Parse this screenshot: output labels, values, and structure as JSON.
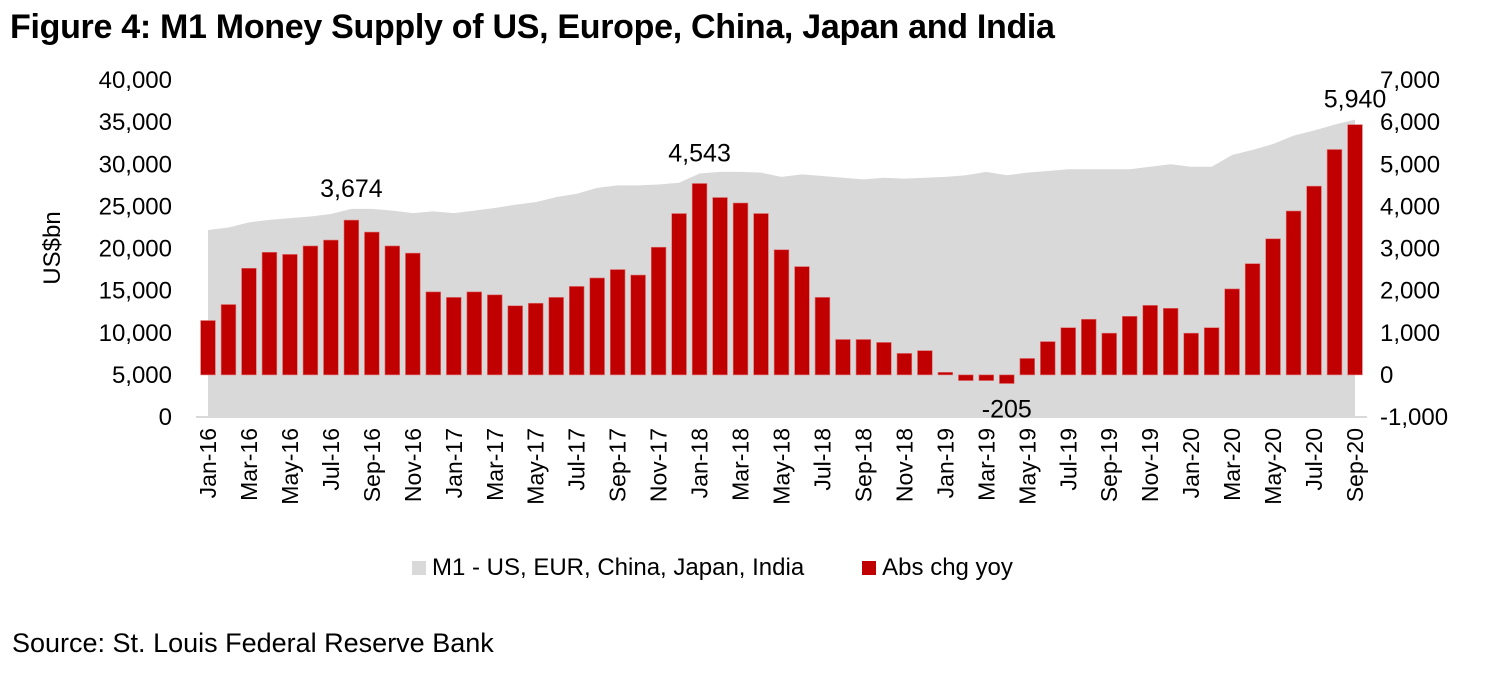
{
  "title": "Figure 4: M1 Money Supply of US, Europe, China, Japan and India",
  "source": "Source: St. Louis Federal Reserve Bank",
  "colors": {
    "area": "#d9d9d9",
    "bar": "#c00000",
    "axis": "#d9d9d9"
  },
  "chart_data": {
    "type": "bar",
    "title": "Figure 4: M1 Money Supply of US, Europe, China, Japan and India",
    "ylabel": "US$bn",
    "xlabel": "",
    "legend_position": "bottom",
    "grid": false,
    "categories": [
      "Jan-16",
      "Feb-16",
      "Mar-16",
      "Apr-16",
      "May-16",
      "Jun-16",
      "Jul-16",
      "Aug-16",
      "Sep-16",
      "Oct-16",
      "Nov-16",
      "Dec-16",
      "Jan-17",
      "Feb-17",
      "Mar-17",
      "Apr-17",
      "May-17",
      "Jun-17",
      "Jul-17",
      "Aug-17",
      "Sep-17",
      "Oct-17",
      "Nov-17",
      "Dec-17",
      "Jan-18",
      "Feb-18",
      "Mar-18",
      "Apr-18",
      "May-18",
      "Jun-18",
      "Jul-18",
      "Aug-18",
      "Sep-18",
      "Oct-18",
      "Nov-18",
      "Dec-18",
      "Jan-19",
      "Feb-19",
      "Mar-19",
      "Apr-19",
      "May-19",
      "Jun-19",
      "Jul-19",
      "Aug-19",
      "Sep-19",
      "Oct-19",
      "Nov-19",
      "Dec-19",
      "Jan-20",
      "Feb-20",
      "Mar-20",
      "Apr-20",
      "May-20",
      "Jun-20",
      "Jul-20",
      "Aug-20",
      "Sep-20"
    ],
    "xtick_labels": [
      "Jan-16",
      "Mar-16",
      "May-16",
      "Jul-16",
      "Sep-16",
      "Nov-16",
      "Jan-17",
      "Mar-17",
      "May-17",
      "Jul-17",
      "Sep-17",
      "Nov-17",
      "Jan-18",
      "Mar-18",
      "May-18",
      "Jul-18",
      "Sep-18",
      "Nov-18",
      "Jan-19",
      "Mar-19",
      "May-19",
      "Jul-19",
      "Sep-19",
      "Nov-19",
      "Jan-20",
      "Mar-20",
      "May-20",
      "Jul-20",
      "Sep-20"
    ],
    "series": [
      {
        "name": "M1 - US, EUR, China, Japan, India",
        "type": "area",
        "axis": "left",
        "values": [
          22200,
          22500,
          23100,
          23400,
          23600,
          23800,
          24100,
          24700,
          24700,
          24500,
          24200,
          24400,
          24200,
          24500,
          24800,
          25200,
          25500,
          26100,
          26500,
          27200,
          27500,
          27500,
          27600,
          27800,
          28900,
          29100,
          29100,
          29000,
          28500,
          28800,
          28600,
          28400,
          28200,
          28400,
          28300,
          28400,
          28500,
          28700,
          29100,
          28700,
          29000,
          29200,
          29400,
          29400,
          29400,
          29400,
          29700,
          30000,
          29700,
          29700,
          31100,
          31700,
          32400,
          33400,
          34000,
          34700,
          35300
        ]
      },
      {
        "name": "Abs chg yoy",
        "type": "bar",
        "axis": "right",
        "values": [
          1290,
          1670,
          2530,
          2910,
          2860,
          3060,
          3200,
          3674,
          3390,
          3060,
          2890,
          1970,
          1840,
          1970,
          1900,
          1640,
          1700,
          1840,
          2100,
          2300,
          2500,
          2370,
          3030,
          3830,
          4543,
          4210,
          4080,
          3830,
          2970,
          2570,
          1840,
          840,
          840,
          770,
          510,
          575,
          60,
          -135,
          -135,
          -205,
          390,
          790,
          1120,
          1320,
          990,
          1390,
          1650,
          1580,
          990,
          1120,
          2040,
          2640,
          3230,
          3890,
          4480,
          5350,
          5940
        ]
      }
    ],
    "left_axis": {
      "ylim": [
        0,
        40000
      ],
      "ticks": [
        0,
        5000,
        10000,
        15000,
        20000,
        25000,
        30000,
        35000,
        40000
      ],
      "tick_labels": [
        "0",
        "5,000",
        "10,000",
        "15,000",
        "20,000",
        "25,000",
        "30,000",
        "35,000",
        "40,000"
      ]
    },
    "right_axis": {
      "ylim": [
        -1000,
        7000
      ],
      "ticks": [
        -1000,
        0,
        1000,
        2000,
        3000,
        4000,
        5000,
        6000,
        7000
      ],
      "tick_labels": [
        "-1,000",
        "0",
        "1,000",
        "2,000",
        "3,000",
        "4,000",
        "5,000",
        "6,000",
        "7,000"
      ]
    },
    "annotations": [
      {
        "category": "Aug-16",
        "text": "3,674",
        "position": "above"
      },
      {
        "category": "Jan-18",
        "text": "4,543",
        "position": "above"
      },
      {
        "category": "Apr-19",
        "text": "-205",
        "position": "below"
      },
      {
        "category": "Sep-20",
        "text": "5,940",
        "position": "above"
      }
    ]
  },
  "legend": [
    {
      "label": "M1 - US, EUR, China, Japan, India",
      "color": "#d9d9d9"
    },
    {
      "label": "Abs chg yoy",
      "color": "#c00000"
    }
  ]
}
